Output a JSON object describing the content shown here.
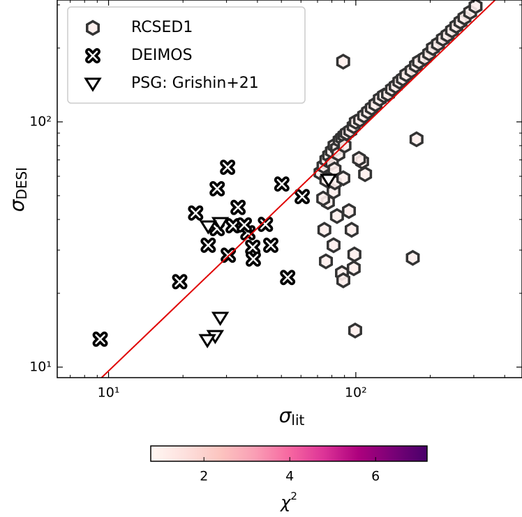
{
  "chart_data": {
    "type": "scatter",
    "x_label": {
      "symbol": "σ",
      "subscript": "lit"
    },
    "y_label": {
      "symbol": "σ",
      "subscript": "DESI"
    },
    "log_x": true,
    "log_y": true,
    "xlim": [
      6.2,
      470
    ],
    "ylim": [
      9.06,
      314
    ],
    "xticks": [
      {
        "value": 10,
        "label": "10¹"
      },
      {
        "value": 100,
        "label": "10²"
      }
    ],
    "yticks": [
      {
        "value": 10,
        "label": "10¹"
      },
      {
        "value": 100,
        "label": "10²"
      }
    ],
    "legend": "upper left",
    "reference_line": {
      "color": "#e00000",
      "x": [
        9.37,
        366
      ],
      "y": [
        9.06,
        314
      ]
    },
    "series": [
      {
        "name": "RCSED1",
        "marker": "hexagon",
        "color": "#333333",
        "fill": "#fdeeec",
        "x": [
          72,
          74,
          76,
          78,
          80,
          82,
          84,
          86,
          88,
          90,
          92,
          95,
          98,
          100,
          104,
          108,
          112,
          116,
          120,
          125,
          130,
          135,
          140,
          145,
          150,
          155,
          160,
          168,
          175,
          180,
          190,
          198,
          205,
          215,
          225,
          235,
          245,
          255,
          265,
          275,
          290,
          305,
          80,
          85,
          90,
          76,
          82,
          74.6,
          81.3,
          75.7,
          87.9,
          89.0,
          98.7,
          98.1,
          93.8,
          83.9,
          96.2,
          106,
          109,
          103,
          77.1,
          81.3,
          73.8,
          82.3,
          89.0,
          88.9,
          176,
          170,
          99.4
        ],
        "values": [
          62,
          66,
          70,
          73,
          76,
          80,
          78,
          84,
          86,
          88,
          90,
          92,
          96,
          100,
          102,
          106,
          110,
          114,
          118,
          124,
          128,
          130,
          136,
          140,
          146,
          150,
          156,
          162,
          170,
          176,
          182,
          190,
          200,
          208,
          218,
          226,
          236,
          246,
          256,
          266,
          280,
          296,
          68,
          74,
          80,
          58,
          64,
          36.3,
          31.4,
          27.0,
          24.2,
          22.6,
          28.8,
          25.3,
          43.3,
          41.3,
          36.3,
          68.9,
          61.2,
          70.7,
          47.1,
          52.0,
          48.7,
          56.6,
          58.9,
          176,
          84.9,
          27.9,
          14.1
        ]
      },
      {
        "name": "DEIMOS",
        "marker": "x",
        "color": "#000000",
        "x": [
          9.25,
          19.4,
          22.5,
          25.3,
          27.5,
          30.3,
          30.5,
          27.5,
          33.4,
          31.9,
          36.6,
          38.3,
          38.5,
          43.1,
          45.3,
          50.2,
          53.0,
          60.7,
          35.4
        ],
        "values": [
          13.0,
          22.3,
          42.5,
          31.4,
          53.4,
          65.3,
          28.6,
          36.7,
          44.8,
          37.7,
          35.3,
          30.8,
          27.6,
          38.2,
          31.4,
          55.8,
          23.2,
          49.6,
          38.0
        ]
      },
      {
        "name": "PSG: Grishin+21",
        "marker": "triangle_down",
        "color": "#000000",
        "fill": "#ffffff",
        "x": [
          28.3,
          25.3,
          28.3,
          27.0,
          25.1,
          77.6
        ],
        "values": [
          38.7,
          37.5,
          15.9,
          13.4,
          12.9,
          58.1
        ]
      }
    ],
    "colorbar": {
      "label": {
        "symbol": "χ",
        "superscript": "2"
      },
      "clim": [
        0.76,
        7.2
      ],
      "ticks": [
        2,
        4,
        6
      ],
      "colormap_colors": [
        "#fff7f3",
        "#fde0dd",
        "#fcc5c0",
        "#fa9fb5",
        "#f768a1",
        "#dd3497",
        "#ae017e",
        "#7a0177",
        "#49006a"
      ]
    }
  }
}
